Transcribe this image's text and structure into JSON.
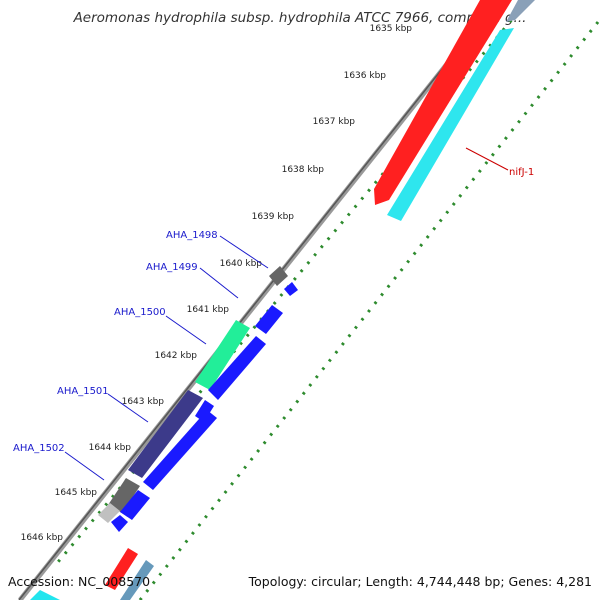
{
  "title": "Aeromonas hydrophila subsp. hydrophila ATCC 7966, complete g...",
  "footer": {
    "accession": "Accession: NC_008570",
    "summary": "Topology: circular; Length: 4,744,448 bp; Genes: 4,281"
  },
  "kbp_labels": [
    "1635 kbp",
    "1636 kbp",
    "1637 kbp",
    "1638 kbp",
    "1639 kbp",
    "1640 kbp",
    "1641 kbp",
    "1642 kbp",
    "1643 kbp",
    "1644 kbp",
    "1645 kbp",
    "1646 kbp"
  ],
  "gene_labels": {
    "aha_1498": "AHA_1498",
    "aha_1499": "AHA_1499",
    "aha_1500": "AHA_1500",
    "aha_1501": "AHA_1501",
    "aha_1502": "AHA_1502",
    "nifj": "nifJ-1"
  },
  "colors": {
    "tick": "#2e8b2e",
    "backbone": "#888888",
    "cds_blue": "#1a1aff",
    "cog_red": "#ff1a1a",
    "cyan": "#22e5ee",
    "gray": "#666666",
    "navy": "#3c3a8a",
    "mint": "#22ee99",
    "label_blue": "#1a1acc",
    "label_red": "#cc0000"
  }
}
